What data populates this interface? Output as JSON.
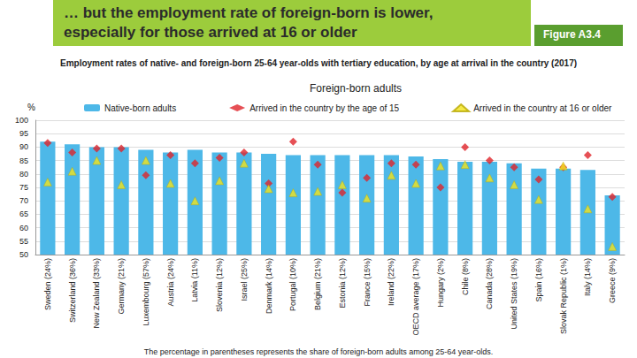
{
  "chart_data": {
    "type": "bar",
    "title": "… but the employment rate of foreign-born is lower,\nespecially for those arrived at 16 or older",
    "figure_label": "Figure A3.4",
    "subtitle": "Employment rates of native- and foreign-born 25-64 year-olds with tertiary education, by age at arrival in the country (2017)",
    "legend_title": "Foreign-born adults",
    "y_label": "%",
    "note": "The percentage in parentheses represents the share of foreign-born adults among 25-64 year-olds.",
    "categories": [
      "Sweden (24%)",
      "Switzerland (36%)",
      "New Zealand (33%)",
      "Germany (21%)",
      "Luxembourg (57%)",
      "Austria (24%)",
      "Latvia (11%)",
      "Slovenia (12%)",
      "Israel (25%)",
      "Denmark (14%)",
      "Portugal (10%)",
      "Belgium (21%)",
      "Estonia (12%)",
      "France (15%)",
      "Ireland (22%)",
      "OECD average (17%)",
      "Hungary (2%)",
      "Chile (8%)",
      "Canada (28%)",
      "United States (19%)",
      "Spain (16%)",
      "Slovak Republic (1%)",
      "Italy (14%)",
      "Greece (9%)"
    ],
    "series": [
      {
        "name": "Native-born adults",
        "type": "bar",
        "color": "#4db8e8",
        "values": [
          92,
          91,
          90,
          90,
          89,
          88,
          89,
          88,
          88,
          87.5,
          87,
          87,
          87,
          87,
          87,
          86.5,
          85.5,
          84.5,
          84.5,
          84,
          82,
          82,
          81.5,
          72
        ]
      },
      {
        "name": "Arrived in the country by the age of 15",
        "type": "scatter",
        "marker": "diamond",
        "color": "#e0242a",
        "values": [
          91.5,
          88,
          89.5,
          89.5,
          79.5,
          87,
          84,
          86,
          88,
          76.5,
          92,
          83.5,
          73,
          78.5,
          84,
          83.5,
          75,
          90,
          85,
          82.5,
          78,
          82.5,
          87,
          71.5
        ]
      },
      {
        "name": "Arrived in the country at 16 or older",
        "type": "scatter",
        "marker": "triangle",
        "color": "#f2e31b",
        "values": [
          77,
          81,
          85,
          76,
          85,
          76.5,
          70,
          77.5,
          84,
          74.5,
          73,
          73.5,
          76,
          71,
          79.5,
          76.5,
          83,
          83.5,
          78.5,
          76,
          70.5,
          83,
          67,
          53
        ]
      }
    ],
    "ylim": [
      50,
      100
    ],
    "yticks": [
      50,
      55,
      60,
      65,
      70,
      75,
      80,
      85,
      90,
      95,
      100
    ],
    "grid": true
  }
}
